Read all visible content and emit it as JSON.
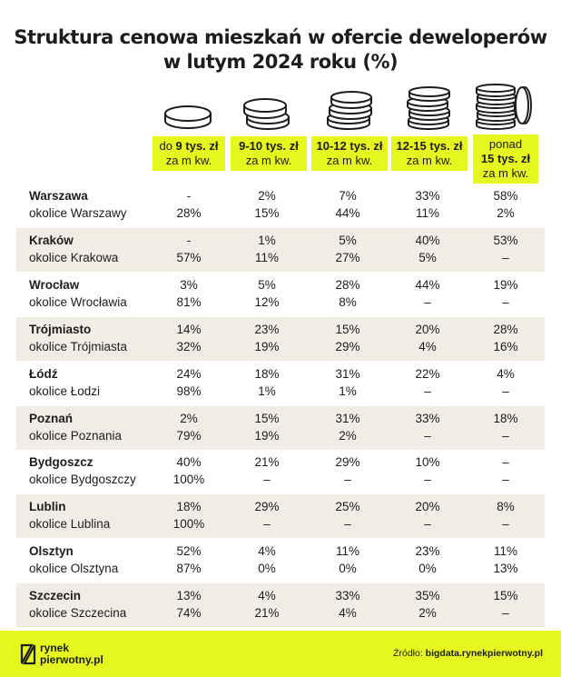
{
  "title": {
    "line1": "Struktura cenowa mieszkań w ofercie deweloperów",
    "line2": "w lutym 2024 roku (%)"
  },
  "columns": [
    {
      "bold": "9 tys. zł",
      "prefix": "do ",
      "sub": "za m kw.",
      "icon": "coin-stack-1-icon"
    },
    {
      "bold": "9-10 tys. zł",
      "prefix": "",
      "sub": "za m kw.",
      "icon": "coin-stack-2-icon"
    },
    {
      "bold": "10-12 tys. zł",
      "prefix": "",
      "sub": "za m kw.",
      "icon": "coin-stack-3-icon"
    },
    {
      "bold": "12-15 tys. zł",
      "prefix": "",
      "sub": "za m kw.",
      "icon": "coin-stack-4-icon"
    },
    {
      "bold": "15 tys. zł",
      "prefix": "ponad",
      "sub": "za m kw.",
      "icon": "coin-stack-5-icon"
    }
  ],
  "rows": [
    {
      "city": "Warszawa",
      "area": "okolice Warszawy",
      "city_vals": [
        "-",
        "2%",
        "7%",
        "33%",
        "58%"
      ],
      "area_vals": [
        "28%",
        "15%",
        "44%",
        "11%",
        "2%"
      ]
    },
    {
      "city": "Kraków",
      "area": "okolice Krakowa",
      "city_vals": [
        "-",
        "1%",
        "5%",
        "40%",
        "53%"
      ],
      "area_vals": [
        "57%",
        "11%",
        "27%",
        "5%",
        "–"
      ]
    },
    {
      "city": "Wrocław",
      "area": "okolice Wrocławia",
      "city_vals": [
        "3%",
        "5%",
        "28%",
        "44%",
        "19%"
      ],
      "area_vals": [
        "81%",
        "12%",
        "8%",
        "–",
        "–"
      ]
    },
    {
      "city": "Trójmiasto",
      "area": "okolice Trójmiasta",
      "city_vals": [
        "14%",
        "23%",
        "15%",
        "20%",
        "28%"
      ],
      "area_vals": [
        "32%",
        "19%",
        "29%",
        "4%",
        "16%"
      ]
    },
    {
      "city": "Łódź",
      "area": "okolice Łodzi",
      "city_vals": [
        "24%",
        "18%",
        "31%",
        "22%",
        "4%"
      ],
      "area_vals": [
        "98%",
        "1%",
        "1%",
        "–",
        "–"
      ]
    },
    {
      "city": "Poznań",
      "area": "okolice Poznania",
      "city_vals": [
        "2%",
        "15%",
        "31%",
        "33%",
        "18%"
      ],
      "area_vals": [
        "79%",
        "19%",
        "2%",
        "–",
        "–"
      ]
    },
    {
      "city": "Bydgoszcz",
      "area": "okolice Bydgoszczy",
      "city_vals": [
        "40%",
        "21%",
        "29%",
        "10%",
        "–"
      ],
      "area_vals": [
        "100%",
        "–",
        "–",
        "–",
        "–"
      ]
    },
    {
      "city": "Lublin",
      "area": "okolice Lublina",
      "city_vals": [
        "18%",
        "29%",
        "25%",
        "20%",
        "8%"
      ],
      "area_vals": [
        "100%",
        "–",
        "–",
        "–",
        "–"
      ]
    },
    {
      "city": "Olsztyn",
      "area": "okolice Olsztyna",
      "city_vals": [
        "52%",
        "4%",
        "11%",
        "23%",
        "11%"
      ],
      "area_vals": [
        "87%",
        "0%",
        "0%",
        "0%",
        "13%"
      ]
    },
    {
      "city": "Szczecin",
      "area": "okolice Szczecina",
      "city_vals": [
        "13%",
        "4%",
        "33%",
        "35%",
        "15%"
      ],
      "area_vals": [
        "74%",
        "21%",
        "4%",
        "2%",
        "–"
      ]
    }
  ],
  "footer": {
    "logo_line1": "rynek",
    "logo_line2": "pierwotny.pl",
    "source_label": "Źródło: ",
    "source_value": "bigdata.rynekpierwotny.pl"
  },
  "colors": {
    "accent": "#e6f71f",
    "row_shade": "#f1ece5",
    "text": "#1d1d1b"
  }
}
